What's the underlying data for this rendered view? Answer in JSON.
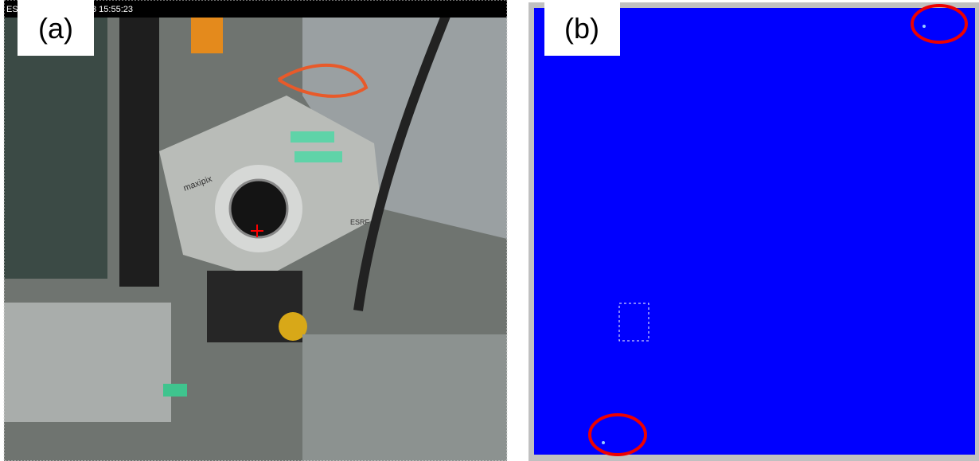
{
  "panels": [
    {
      "label": "(a)",
      "timestamp_left": "ES",
      "timestamp_right": "3 15:55:23",
      "device_text": "maxipix",
      "device_logo": "ESRF"
    },
    {
      "label": "(b)"
    }
  ]
}
